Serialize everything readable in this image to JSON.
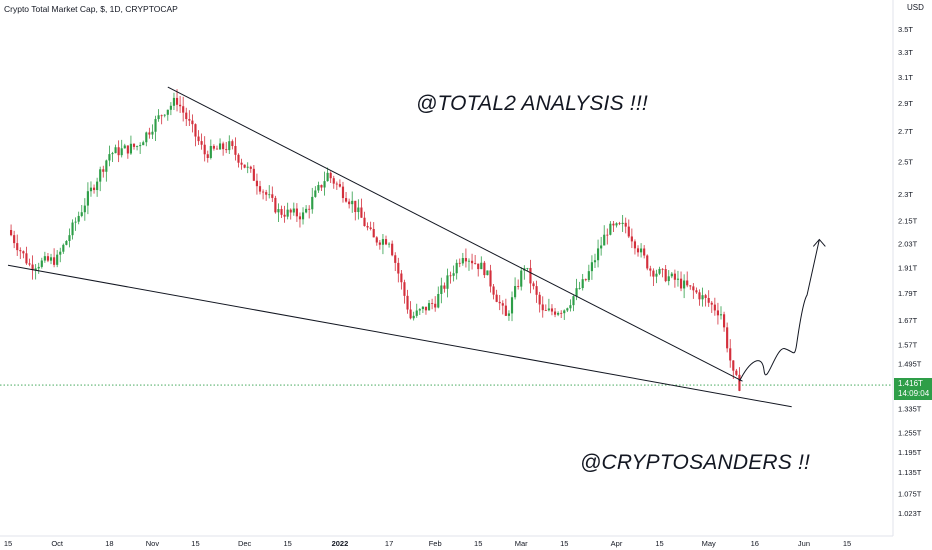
{
  "header": {
    "title": "Crypto Total Market Cap, $, 1D, CRYPTOCAP",
    "currency": "USD"
  },
  "annotations": {
    "top": "@TOTAL2 ANALYSIS !!!",
    "bottom": "@CRYPTOSANDERS !!"
  },
  "last_price": {
    "value": "1.416T",
    "countdown": "14:09:04"
  },
  "colors": {
    "up": "#26a69a",
    "up_candle": "#2e9e48",
    "down": "#d32f3c",
    "price_line": "#2e9e48",
    "trendline": "#131722"
  },
  "chart_data": {
    "type": "candlestick",
    "title": "Crypto Total Market Cap, $, 1D, CRYPTOCAP",
    "y_scale": "log",
    "y_unit": "USD",
    "y_tick_labels": [
      "3.5T",
      "3.3T",
      "3.1T",
      "2.9T",
      "2.7T",
      "2.5T",
      "2.3T",
      "2.15T",
      "2.03T",
      "1.91T",
      "1.79T",
      "1.67T",
      "1.57T",
      "1.495T",
      "1.335T",
      "1.255T",
      "1.195T",
      "1.135T",
      "1.075T",
      "1.023T"
    ],
    "y_tick_values": [
      3.5,
      3.3,
      3.1,
      2.9,
      2.7,
      2.5,
      2.3,
      2.15,
      2.03,
      1.91,
      1.79,
      1.67,
      1.57,
      1.495,
      1.335,
      1.255,
      1.195,
      1.135,
      1.075,
      1.023
    ],
    "x_tick_labels": [
      "15",
      "Oct",
      "18",
      "Nov",
      "15",
      "Dec",
      "15",
      "2022",
      "17",
      "Feb",
      "15",
      "Mar",
      "15",
      "Apr",
      "15",
      "May",
      "16",
      "Jun",
      "15"
    ],
    "last_value": 1.416,
    "series_close_path": [
      {
        "date": "2021-09-15",
        "value": 2.1
      },
      {
        "date": "2021-09-22",
        "value": 1.92
      },
      {
        "date": "2021-10-01",
        "value": 1.95
      },
      {
        "date": "2021-10-10",
        "value": 2.25
      },
      {
        "date": "2021-10-18",
        "value": 2.55
      },
      {
        "date": "2021-10-27",
        "value": 2.6
      },
      {
        "date": "2021-11-05",
        "value": 2.85
      },
      {
        "date": "2021-11-09",
        "value": 2.92
      },
      {
        "date": "2021-11-18",
        "value": 2.55
      },
      {
        "date": "2021-11-26",
        "value": 2.6
      },
      {
        "date": "2021-12-04",
        "value": 2.4
      },
      {
        "date": "2021-12-12",
        "value": 2.2
      },
      {
        "date": "2021-12-20",
        "value": 2.18
      },
      {
        "date": "2021-12-28",
        "value": 2.42
      },
      {
        "date": "2022-01-05",
        "value": 2.25
      },
      {
        "date": "2022-01-12",
        "value": 2.05
      },
      {
        "date": "2022-01-17",
        "value": 2.05
      },
      {
        "date": "2022-01-24",
        "value": 1.68
      },
      {
        "date": "2022-02-01",
        "value": 1.75
      },
      {
        "date": "2022-02-10",
        "value": 1.98
      },
      {
        "date": "2022-02-17",
        "value": 1.9
      },
      {
        "date": "2022-02-24",
        "value": 1.68
      },
      {
        "date": "2022-03-02",
        "value": 1.92
      },
      {
        "date": "2022-03-08",
        "value": 1.7
      },
      {
        "date": "2022-03-15",
        "value": 1.72
      },
      {
        "date": "2022-03-22",
        "value": 1.85
      },
      {
        "date": "2022-03-29",
        "value": 2.1
      },
      {
        "date": "2022-04-04",
        "value": 2.12
      },
      {
        "date": "2022-04-12",
        "value": 1.9
      },
      {
        "date": "2022-04-20",
        "value": 1.85
      },
      {
        "date": "2022-04-28",
        "value": 1.78
      },
      {
        "date": "2022-05-05",
        "value": 1.7
      },
      {
        "date": "2022-05-09",
        "value": 1.45
      },
      {
        "date": "2022-05-11",
        "value": 1.416
      }
    ],
    "trendlines": [
      {
        "name": "upper",
        "from": {
          "date": "2021-11-06",
          "value": 3.02
        },
        "to": {
          "date": "2022-05-12",
          "value": 1.43
        }
      },
      {
        "name": "lower",
        "from": {
          "date": "2021-09-15",
          "value": 1.92
        },
        "to": {
          "date": "2022-05-28",
          "value": 1.34
        }
      }
    ],
    "projection": [
      {
        "date": "2022-05-11",
        "value": 1.43
      },
      {
        "date": "2022-05-19",
        "value": 1.47
      },
      {
        "date": "2022-05-27",
        "value": 1.53
      },
      {
        "date": "2022-06-02",
        "value": 1.78
      },
      {
        "date": "2022-06-06",
        "value": 2.05
      }
    ]
  }
}
